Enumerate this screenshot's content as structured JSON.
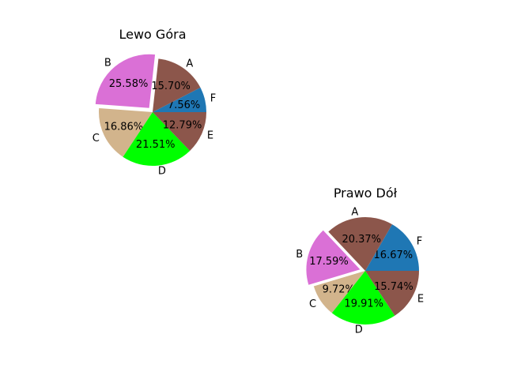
{
  "chart_data": [
    {
      "type": "pie",
      "title": "Lewo Góra",
      "categories": [
        "F",
        "A",
        "B",
        "C",
        "D",
        "E"
      ],
      "values": [
        7.56,
        15.7,
        25.58,
        16.86,
        21.51,
        12.79
      ],
      "value_labels": [
        "7.56%",
        "15.70%",
        "25.58%",
        "16.86%",
        "21.51%",
        "12.79%"
      ],
      "colors": [
        "#1f77b4",
        "#8c564b",
        "#da70d6",
        "#d2b48c",
        "#00ff00",
        "#8c564b"
      ],
      "explode": [
        0,
        0,
        0.1,
        0,
        0,
        0
      ],
      "start_angle": 0
    },
    {
      "type": "pie",
      "title": "Prawo Dół",
      "categories": [
        "F",
        "A",
        "B",
        "C",
        "D",
        "E"
      ],
      "values": [
        16.67,
        20.37,
        17.59,
        9.72,
        19.91,
        15.74
      ],
      "value_labels": [
        "16.67%",
        "20.37%",
        "17.59%",
        "9.72%",
        "19.91%",
        "15.74%"
      ],
      "colors": [
        "#1f77b4",
        "#8c564b",
        "#da70d6",
        "#d2b48c",
        "#00ff00",
        "#8c564b"
      ],
      "explode": [
        0,
        0,
        0.1,
        0,
        0,
        0
      ],
      "start_angle": 0
    }
  ]
}
